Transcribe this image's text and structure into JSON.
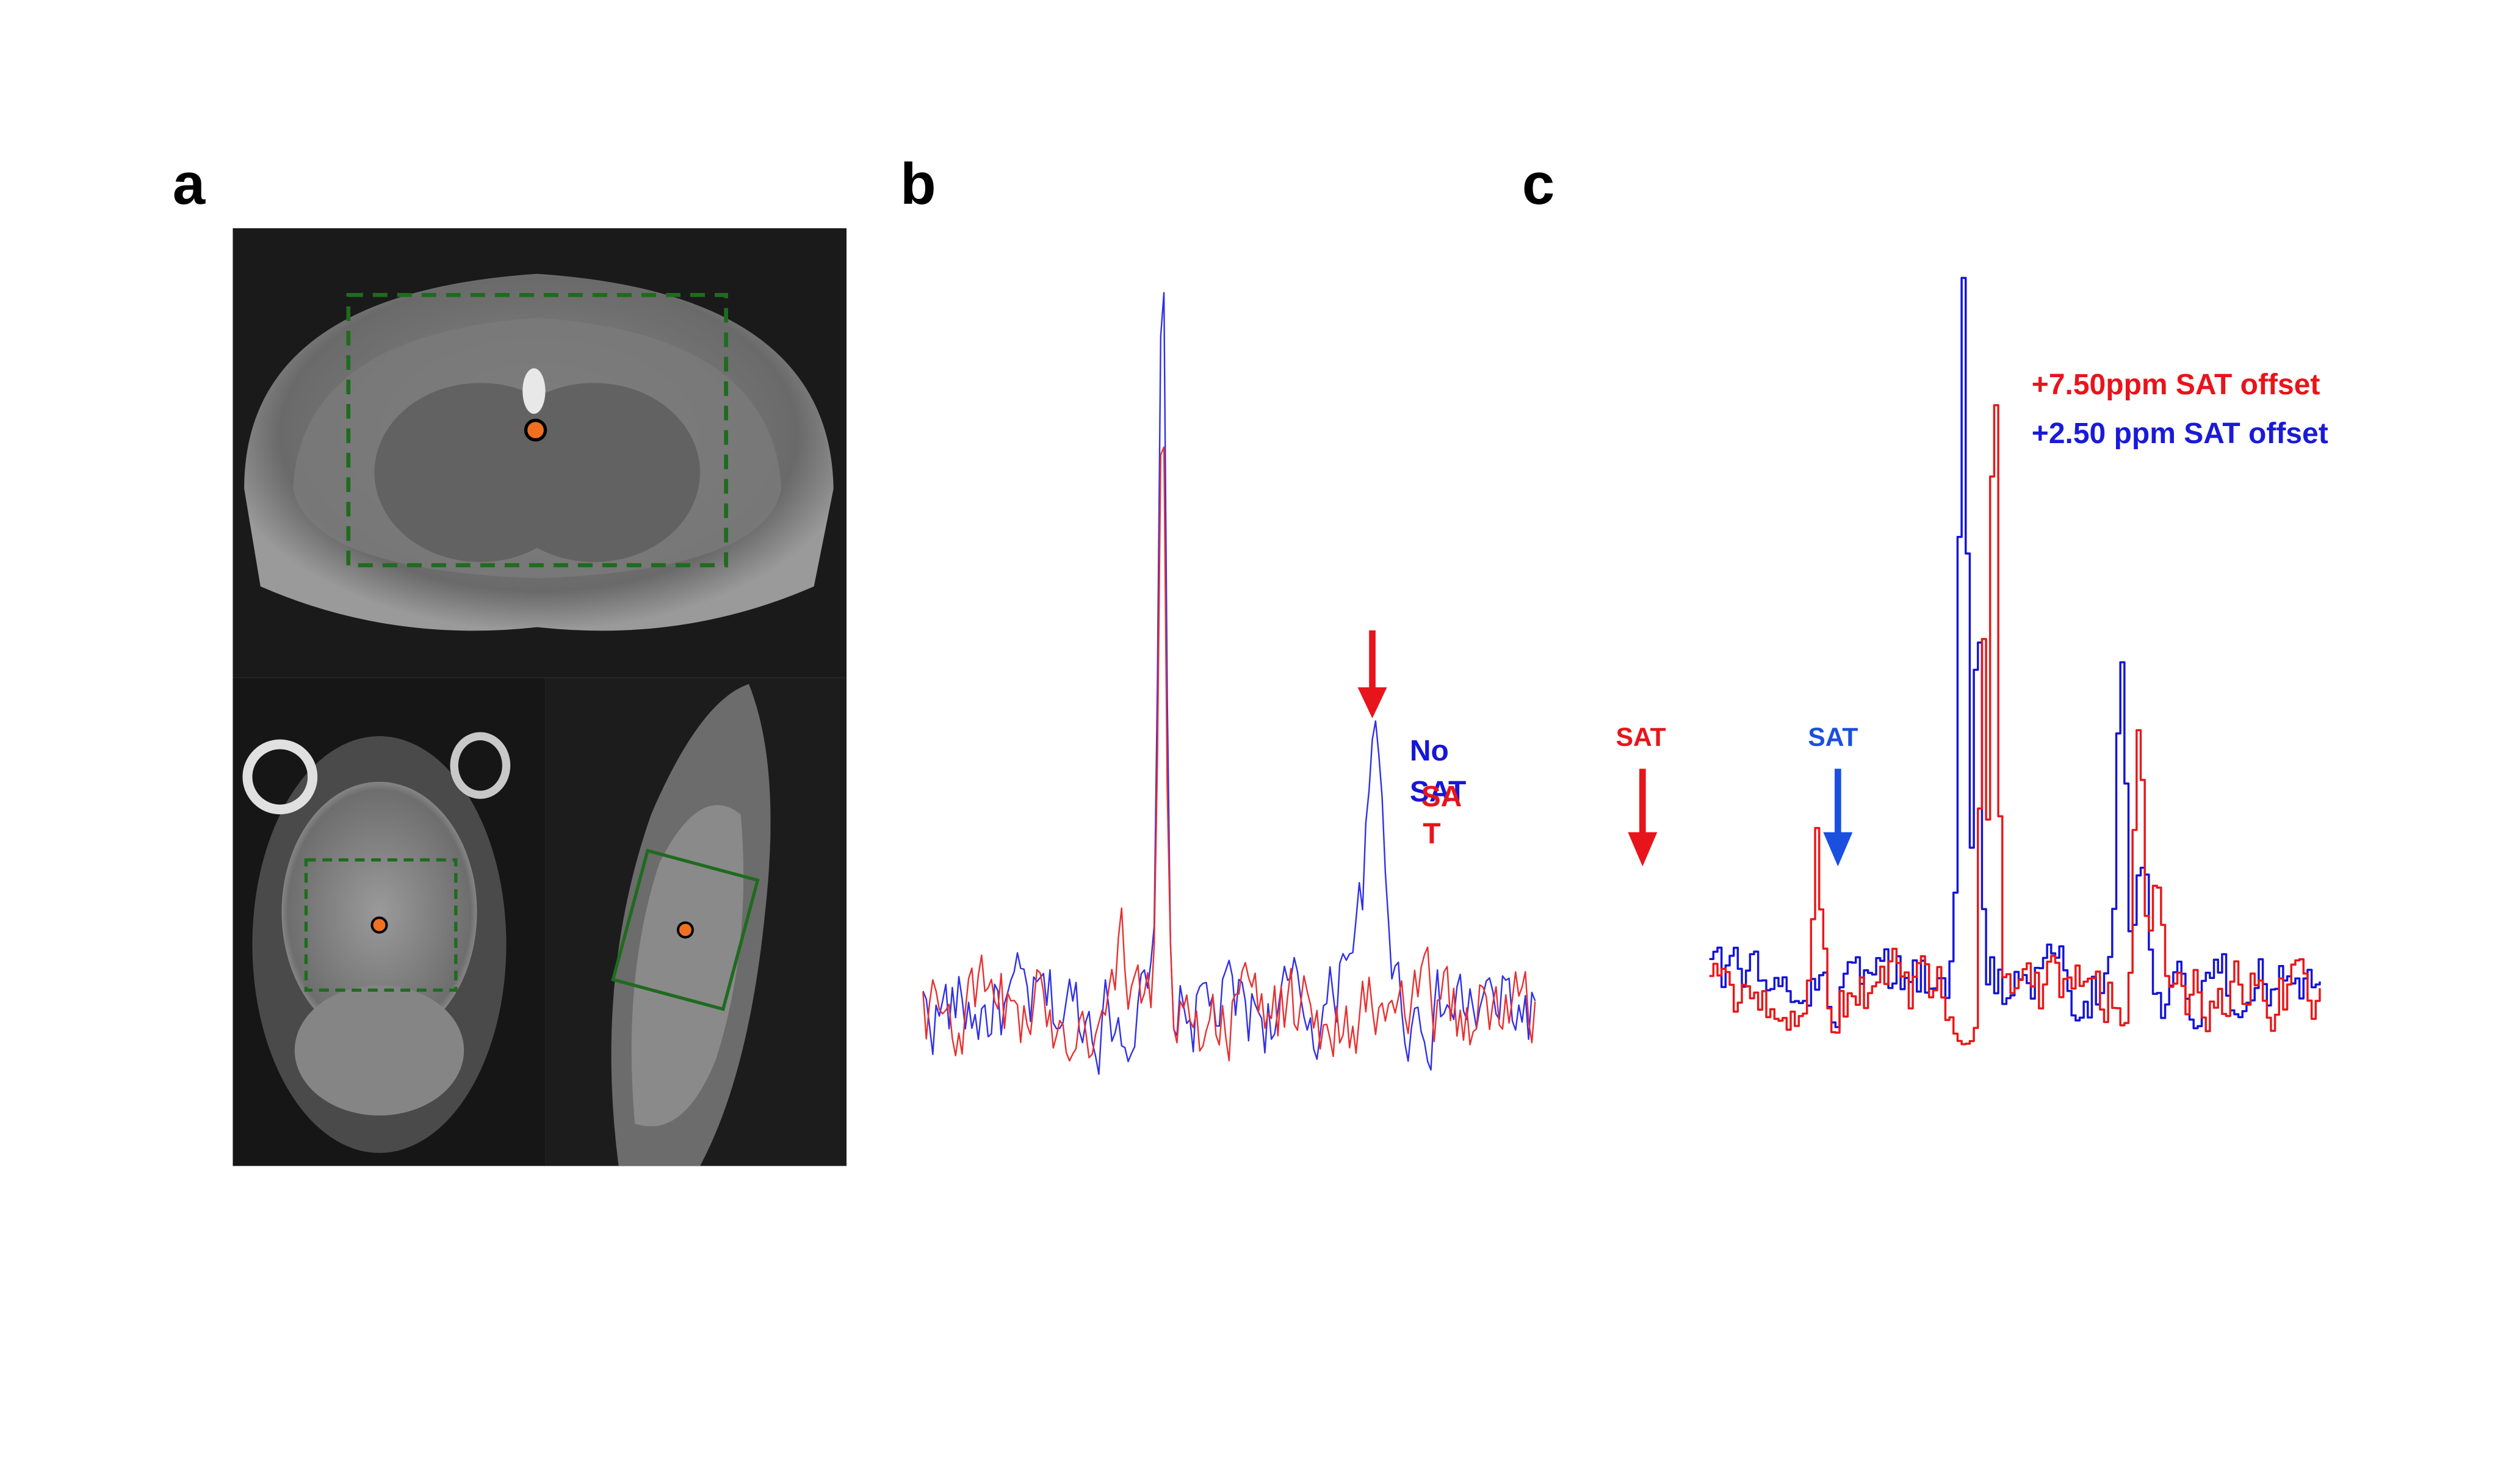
{
  "panels": {
    "a": {
      "label": "a"
    },
    "b": {
      "label": "b",
      "blue_label": [
        "No",
        "SAT"
      ],
      "red_label": [
        "SA",
        "T"
      ]
    },
    "c": {
      "label": "c",
      "red_arrow_label": "SAT",
      "blue_arrow_label": "SAT",
      "legend": [
        "+7.50ppm SAT offset",
        "+2.50 ppm SAT offset"
      ]
    }
  }
}
